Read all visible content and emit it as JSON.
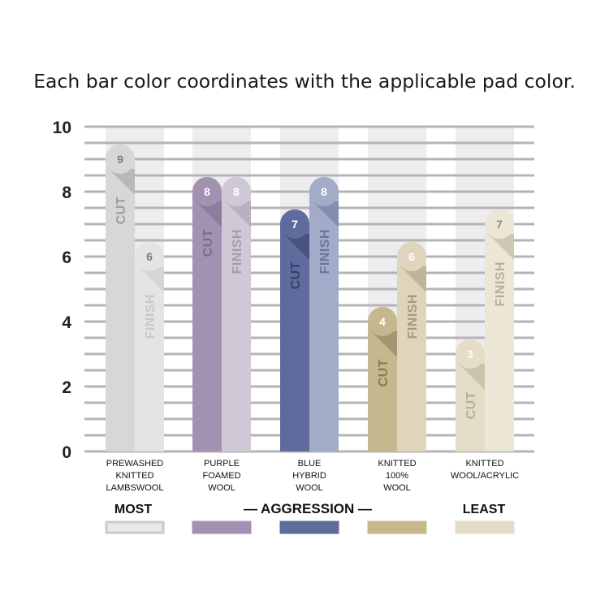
{
  "title": "Each bar color coordinates with the applicable pad color.",
  "chart_data": {
    "type": "bar",
    "ylim": [
      0,
      10
    ],
    "yticks": [
      0,
      2,
      4,
      6,
      8,
      10
    ],
    "grid": true,
    "categories": [
      [
        "PREWASHED",
        "KNITTED",
        "LAMBSWOOL"
      ],
      [
        "PURPLE",
        "FOAMED",
        "WOOL"
      ],
      [
        "BLUE",
        "HYBRID",
        "WOOL"
      ],
      [
        "KNITTED",
        "100%",
        "WOOL"
      ],
      [
        "KNITTED",
        "WOOL/ACRYLIC"
      ]
    ],
    "series": [
      {
        "name": "CUT",
        "values": [
          9,
          8,
          7,
          4,
          3
        ]
      },
      {
        "name": "FINISH",
        "values": [
          6,
          8,
          8,
          6,
          7
        ]
      }
    ],
    "colors": {
      "cut": [
        "#d7d7d9",
        "#a391b1",
        "#5f6b9c",
        "#c7b78e",
        "#e4dcc6"
      ],
      "finish": [
        "#e4e4e6",
        "#cfc9d6",
        "#a2abc7",
        "#dfd5bd",
        "#ece6d6"
      ],
      "track": "#ededef",
      "grid": "#b4b4b6",
      "value_text_dark": [
        "#7b7b7d",
        "#ffffff",
        "#ffffff",
        "#ffffff",
        "#ffffff"
      ],
      "finish_value_text": [
        "#7b7b7d",
        "#ffffff",
        "#ffffff",
        "#ffffff",
        "#8e8e8e"
      ],
      "cut_label": [
        "#9e9e9e",
        "#7b6d88",
        "#363e66",
        "#8a7a55",
        "#b8af96"
      ],
      "finish_label": [
        "#c8c8c8",
        "#a69cb0",
        "#6d769a",
        "#a89a78",
        "#b8af96"
      ]
    },
    "aggression": {
      "left": "MOST",
      "middle": "— AGGRESSION —",
      "right": "LEAST",
      "swatches": [
        "#e9e9eb",
        "#a391b1",
        "#5f6b9c",
        "#c7b78e",
        "#e4dcc6"
      ],
      "swatch_borders": [
        "#c9c9cb",
        "#a391b1",
        "#5f6b9c",
        "#c7b78e",
        "#e4dcc6"
      ]
    }
  }
}
